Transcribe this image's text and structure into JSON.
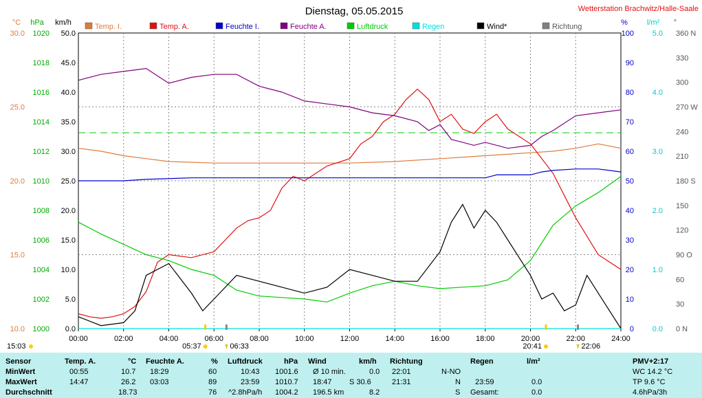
{
  "title": "Dienstag, 05.05.2015",
  "station": "Wetterstation Brachwitz/Halle-Saale",
  "legend": [
    {
      "label": "Temp. I.",
      "color": "#e07a3a"
    },
    {
      "label": "Temp. A.",
      "color": "#e01010"
    },
    {
      "label": "Feuchte I.",
      "color": "#0000cc"
    },
    {
      "label": "Feuchte A.",
      "color": "#800080"
    },
    {
      "label": "Luftdruck",
      "color": "#00cc00"
    },
    {
      "label": "Regen",
      "color": "#00e0e0"
    },
    {
      "label": "Wind*",
      "color": "#000000"
    },
    {
      "label": "Richtung",
      "color": "#808080"
    }
  ],
  "axis_units": {
    "temp": "°C",
    "pressure": "hPa",
    "wind": "km/h",
    "humidity": "%",
    "rain": "l/m²",
    "direction": "°"
  },
  "chart_data": {
    "type": "line",
    "title": "Dienstag, 05.05.2015",
    "x_ticks": [
      "00:00",
      "02:00",
      "04:00",
      "06:00",
      "08:00",
      "10:00",
      "12:00",
      "14:00",
      "16:00",
      "18:00",
      "20:00",
      "22:00",
      "24:00"
    ],
    "axes": {
      "temp": {
        "ticks": [
          "30.0",
          "25.0",
          "20.0",
          "15.0",
          "10.0"
        ],
        "range": [
          10,
          30
        ]
      },
      "pressure": {
        "ticks": [
          "1020",
          "1018",
          "1016",
          "1014",
          "1012",
          "1010",
          "1008",
          "1006",
          "1004",
          "1002",
          "1000"
        ],
        "range": [
          1000,
          1020
        ]
      },
      "wind": {
        "ticks": [
          "50.0",
          "45.0",
          "40.0",
          "35.0",
          "30.0",
          "25.0",
          "20.0",
          "15.0",
          "10.0",
          "5.0",
          "0.0"
        ],
        "range": [
          0,
          50
        ]
      },
      "humidity": {
        "ticks": [
          "100",
          "90",
          "80",
          "70",
          "60",
          "50",
          "40",
          "30",
          "20",
          "10",
          "0"
        ],
        "range": [
          0,
          100
        ]
      },
      "rain": {
        "ticks": [
          "5.0",
          "4.0",
          "3.0",
          "2.0",
          "1.0",
          "0.0"
        ],
        "range": [
          0,
          5
        ]
      },
      "direction": {
        "ticks": [
          "360 N",
          "330",
          "300",
          "270 W",
          "240",
          "210",
          "180 S",
          "150",
          "120",
          "90 O",
          "60",
          "30",
          "0 N"
        ],
        "range": [
          0,
          360
        ]
      }
    },
    "series": [
      {
        "name": "Temp. I.",
        "axis": "temp",
        "color": "#e07a3a",
        "x": [
          0,
          1,
          2,
          3,
          4,
          6,
          8,
          10,
          12,
          14,
          16,
          18,
          20,
          21,
          22,
          23,
          24
        ],
        "values": [
          22.2,
          22.0,
          21.7,
          21.5,
          21.3,
          21.2,
          21.2,
          21.2,
          21.2,
          21.3,
          21.5,
          21.7,
          21.9,
          22.0,
          22.2,
          22.5,
          22.2
        ]
      },
      {
        "name": "Temp. A.",
        "axis": "temp",
        "color": "#e01010",
        "x": [
          0,
          0.5,
          1,
          1.5,
          2,
          2.5,
          3,
          3.5,
          4,
          5,
          6,
          6.5,
          7,
          7.5,
          8,
          8.5,
          9,
          9.5,
          10,
          10.5,
          11,
          12,
          12.5,
          13,
          13.5,
          14,
          14.5,
          15,
          15.5,
          16,
          16.5,
          17,
          17.5,
          18,
          18.5,
          19,
          19.5,
          20,
          21,
          22,
          23,
          24
        ],
        "values": [
          11.0,
          10.8,
          10.7,
          10.8,
          11.0,
          11.5,
          12.5,
          14.5,
          15.0,
          14.8,
          15.2,
          16.0,
          16.8,
          17.3,
          17.5,
          18.0,
          19.5,
          20.3,
          20.0,
          20.5,
          21.0,
          21.5,
          22.5,
          23.0,
          24.0,
          24.5,
          25.5,
          26.2,
          25.5,
          24.0,
          24.5,
          23.5,
          23.2,
          24.0,
          24.5,
          23.5,
          23.0,
          22.5,
          20.5,
          17.5,
          15.0,
          14.0
        ]
      },
      {
        "name": "Feuchte I.",
        "axis": "humidity",
        "color": "#0000cc",
        "x": [
          0,
          2,
          3,
          5,
          8,
          10,
          12,
          14,
          16,
          18,
          18.5,
          19,
          20,
          20.5,
          21,
          22,
          23,
          24
        ],
        "values": [
          50,
          50,
          50.5,
          51,
          51,
          51,
          51,
          51,
          51,
          51,
          52,
          52,
          52,
          53,
          53.5,
          54,
          54,
          53
        ]
      },
      {
        "name": "Feuchte A.",
        "axis": "humidity",
        "color": "#800080",
        "x": [
          0,
          1,
          2,
          3,
          4,
          5,
          6,
          7,
          8,
          9,
          10,
          11,
          12,
          13,
          14,
          15,
          15.5,
          16,
          16.5,
          17,
          17.5,
          18,
          19,
          20,
          20.5,
          21,
          22,
          23,
          24
        ],
        "values": [
          84,
          86,
          87,
          88,
          83,
          85,
          86,
          86,
          82,
          80,
          77,
          76,
          75,
          73,
          72,
          70,
          67,
          69,
          64,
          63,
          62,
          63,
          61,
          62,
          65,
          67,
          72,
          73,
          74
        ]
      },
      {
        "name": "Luftdruck",
        "axis": "pressure",
        "color": "#00cc00",
        "x": [
          0,
          1,
          2,
          3,
          4,
          5,
          6,
          7,
          8,
          9,
          10,
          11,
          12,
          13,
          14,
          15,
          16,
          17,
          18,
          19,
          20,
          21,
          22,
          23,
          24
        ],
        "values": [
          1007.2,
          1006.4,
          1005.7,
          1005.0,
          1004.6,
          1004.0,
          1003.6,
          1002.6,
          1002.2,
          1002.1,
          1002.0,
          1001.8,
          1002.4,
          1002.9,
          1003.2,
          1002.9,
          1002.7,
          1002.8,
          1002.9,
          1003.3,
          1004.6,
          1007.0,
          1008.3,
          1009.2,
          1010.3
        ]
      },
      {
        "name": "Wind*",
        "axis": "wind",
        "color": "#000000",
        "x": [
          0,
          1,
          2,
          2.5,
          3,
          4,
          5,
          5.5,
          6,
          7,
          8,
          9,
          10,
          11,
          12,
          13,
          14,
          15,
          16,
          16.5,
          17,
          17.5,
          18,
          18.5,
          19,
          20,
          20.5,
          21,
          21.5,
          22,
          22.5,
          23,
          24
        ],
        "values": [
          2,
          0.5,
          1,
          3,
          9,
          11,
          6,
          3,
          5,
          9,
          8,
          7,
          6,
          7,
          10,
          9,
          8,
          8,
          13,
          18,
          21,
          17,
          20,
          18,
          15,
          9,
          5,
          6,
          3,
          4,
          9,
          6,
          0
        ]
      },
      {
        "name": "Regen",
        "axis": "rain",
        "color": "#00e0e0",
        "x": [
          0,
          24
        ],
        "values": [
          0,
          0
        ]
      }
    ],
    "pressure_reference": 1013.25,
    "markers": {
      "sunrise": "05:37",
      "sunset": "20:41",
      "moonrise": "06:33",
      "moonset": "22:06",
      "moon_left": "15:03"
    },
    "grid": true
  },
  "summary": {
    "headers": [
      "Sensor",
      "Temp. A.",
      "°C",
      "Feuchte A.",
      "%",
      "Luftdruck",
      "hPa",
      "Wind",
      "km/h",
      "Richtung",
      "Regen",
      "l/m²",
      "PMV+2:17"
    ],
    "rows": [
      [
        "MinWert",
        "00:55",
        "10.7",
        "18:29",
        "60",
        "10:43",
        "1001.6",
        "Ø 10 min.",
        "0.0",
        "22:01",
        "N-NO",
        "",
        "",
        "WC 14.2 °C"
      ],
      [
        "MaxWert",
        "14:47",
        "26.2",
        "03:03",
        "89",
        "23:59",
        "1010.7",
        "18:47",
        "S 30.6",
        "21:31",
        "N",
        "23:59",
        "0.0",
        "TP 9.6 °C"
      ],
      [
        "Durchschnitt",
        "",
        "18.73",
        "",
        "76",
        "^2.8hPa/h",
        "1004.2",
        "196.5 km",
        "8.2",
        "",
        "S",
        "Gesamt:",
        "0.0",
        "4.6hPa/3h"
      ]
    ]
  }
}
